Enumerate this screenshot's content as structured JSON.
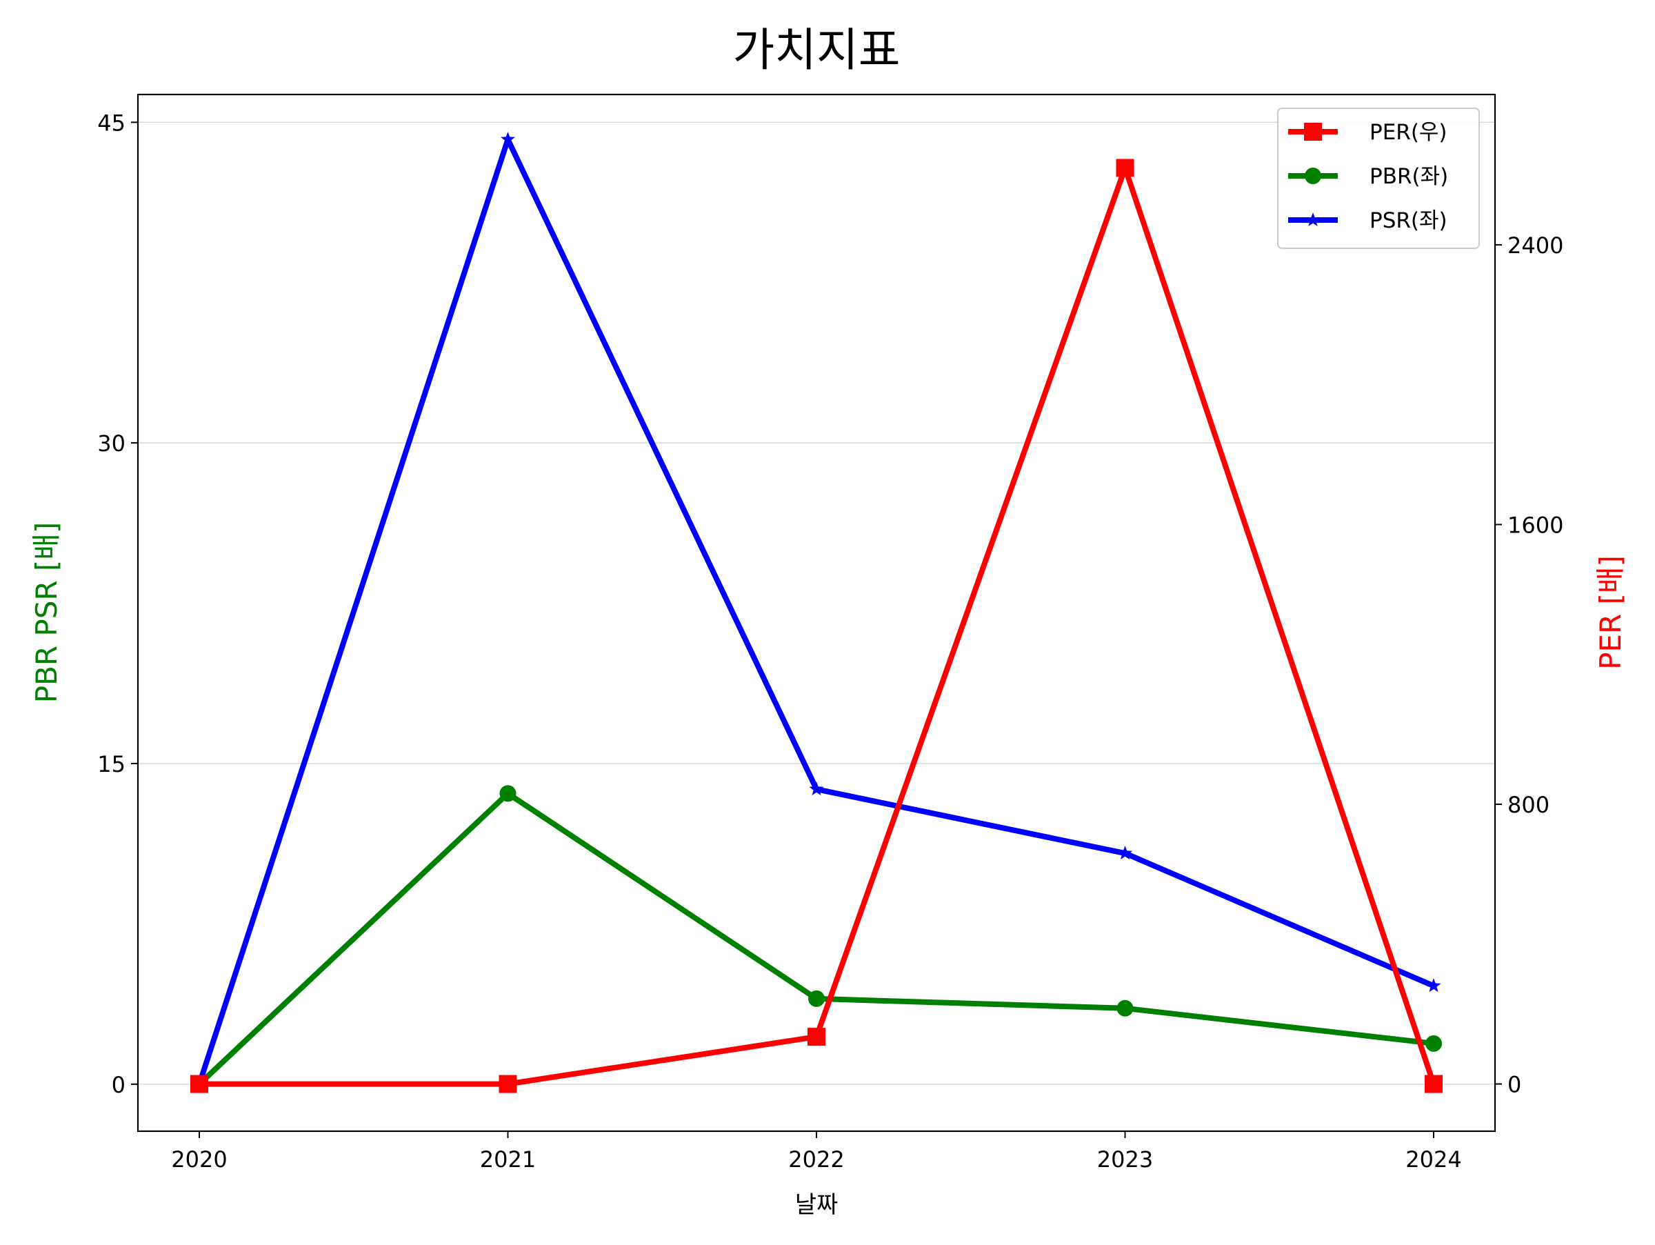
{
  "chart_data": {
    "type": "line",
    "title": "가치지표",
    "xlabel": "날짜",
    "ylabel_left": "PBR PSR [배]",
    "ylabel_right": "PER [배]",
    "categories": [
      "2020",
      "2021",
      "2022",
      "2023",
      "2024"
    ],
    "y_left": {
      "ticks": [
        0,
        15,
        30,
        45
      ],
      "lim": [
        -2.2,
        46.3
      ],
      "grid": true
    },
    "y_right": {
      "ticks": [
        0,
        800,
        1600,
        2400
      ],
      "lim": [
        -135,
        2830
      ]
    },
    "legend_position": "top-right",
    "series": [
      {
        "name": "PER(우)",
        "axis": "right",
        "color": "#ff0000",
        "marker": "square",
        "values": [
          0,
          0,
          135,
          2620,
          0
        ]
      },
      {
        "name": "PBR(좌)",
        "axis": "left",
        "color": "#008000",
        "marker": "circle",
        "values": [
          0,
          13.6,
          4.0,
          3.55,
          1.9
        ]
      },
      {
        "name": "PSR(좌)",
        "axis": "left",
        "color": "#0000ff",
        "marker": "star",
        "values": [
          0,
          44.2,
          13.8,
          10.8,
          4.6
        ]
      }
    ],
    "colors": {
      "left_axis_label": "#008000",
      "right_axis_label": "#ff0000",
      "grid": "#d0d0d0",
      "frame": "#000000"
    }
  }
}
